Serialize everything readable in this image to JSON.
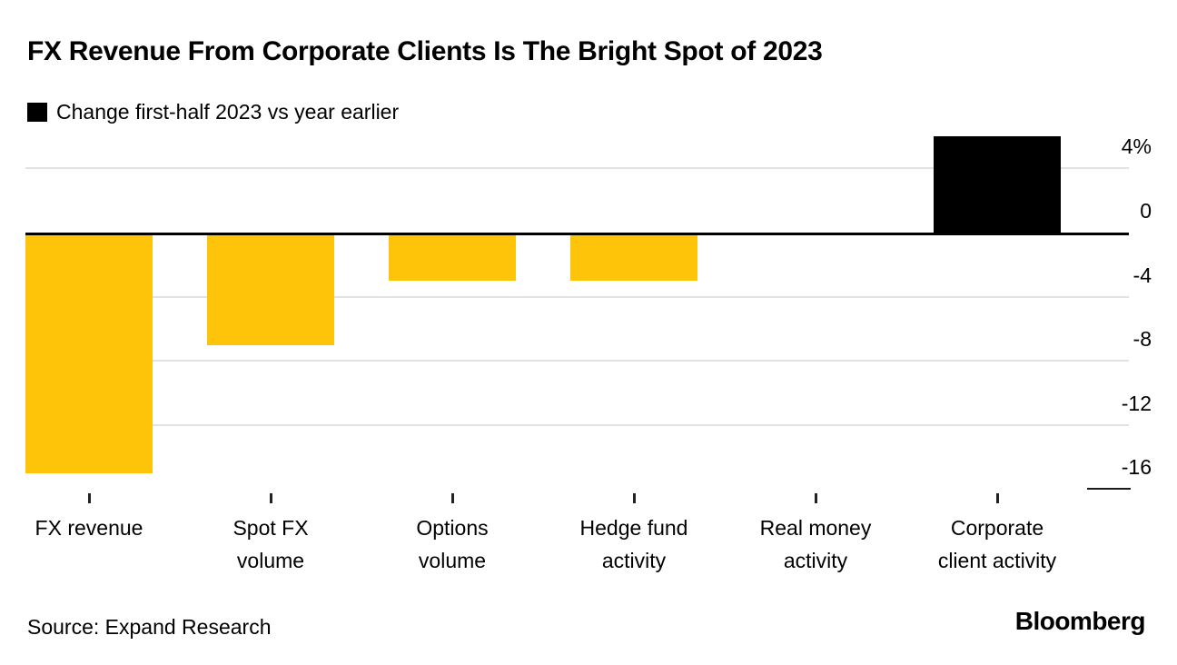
{
  "header": {
    "title": "FX Revenue From Corporate Clients Is The Bright Spot of 2023",
    "legend_label": "Change first-half 2023 vs year earlier"
  },
  "footer": {
    "source": "Source: Expand Research",
    "brand": "Bloomberg"
  },
  "chart_data": {
    "type": "bar",
    "title": "FX Revenue From Corporate Clients Is The Bright Spot of 2023",
    "legend": "Change first-half 2023 vs year earlier",
    "legend_position": "top-left",
    "unit": "%",
    "categories": [
      "FX revenue",
      "Spot FX volume",
      "Options volume",
      "Hedge fund activity",
      "Real money activity",
      "Corporate client activity"
    ],
    "category_label_lines": [
      [
        "FX revenue"
      ],
      [
        "Spot FX",
        "volume"
      ],
      [
        "Options",
        "volume"
      ],
      [
        "Hedge fund",
        "activity"
      ],
      [
        "Real money",
        "activity"
      ],
      [
        "Corporate",
        "client activity"
      ]
    ],
    "values": [
      -15,
      -7,
      -3,
      -3,
      0,
      6
    ],
    "bar_colors": [
      "#FDC40A",
      "#FDC40A",
      "#FDC40A",
      "#FDC40A",
      "#FDC40A",
      "#000000"
    ],
    "yticks": [
      {
        "label": "4%",
        "value": 4,
        "style": "grid"
      },
      {
        "label": "0",
        "value": 0,
        "style": "axis"
      },
      {
        "label": "-4",
        "value": -4,
        "style": "grid"
      },
      {
        "label": "-8",
        "value": -8,
        "style": "grid"
      },
      {
        "label": "-12",
        "value": -12,
        "style": "grid"
      },
      {
        "label": "-16",
        "value": -16,
        "style": "short-tick"
      }
    ],
    "ylim": [
      -16.5,
      6.6
    ],
    "grid": "horizontal",
    "colors": {
      "positive": "#000000",
      "negative": "#FDC40A",
      "grid": "#E2E2E2",
      "axis": "#000000",
      "text": "#000000"
    }
  }
}
